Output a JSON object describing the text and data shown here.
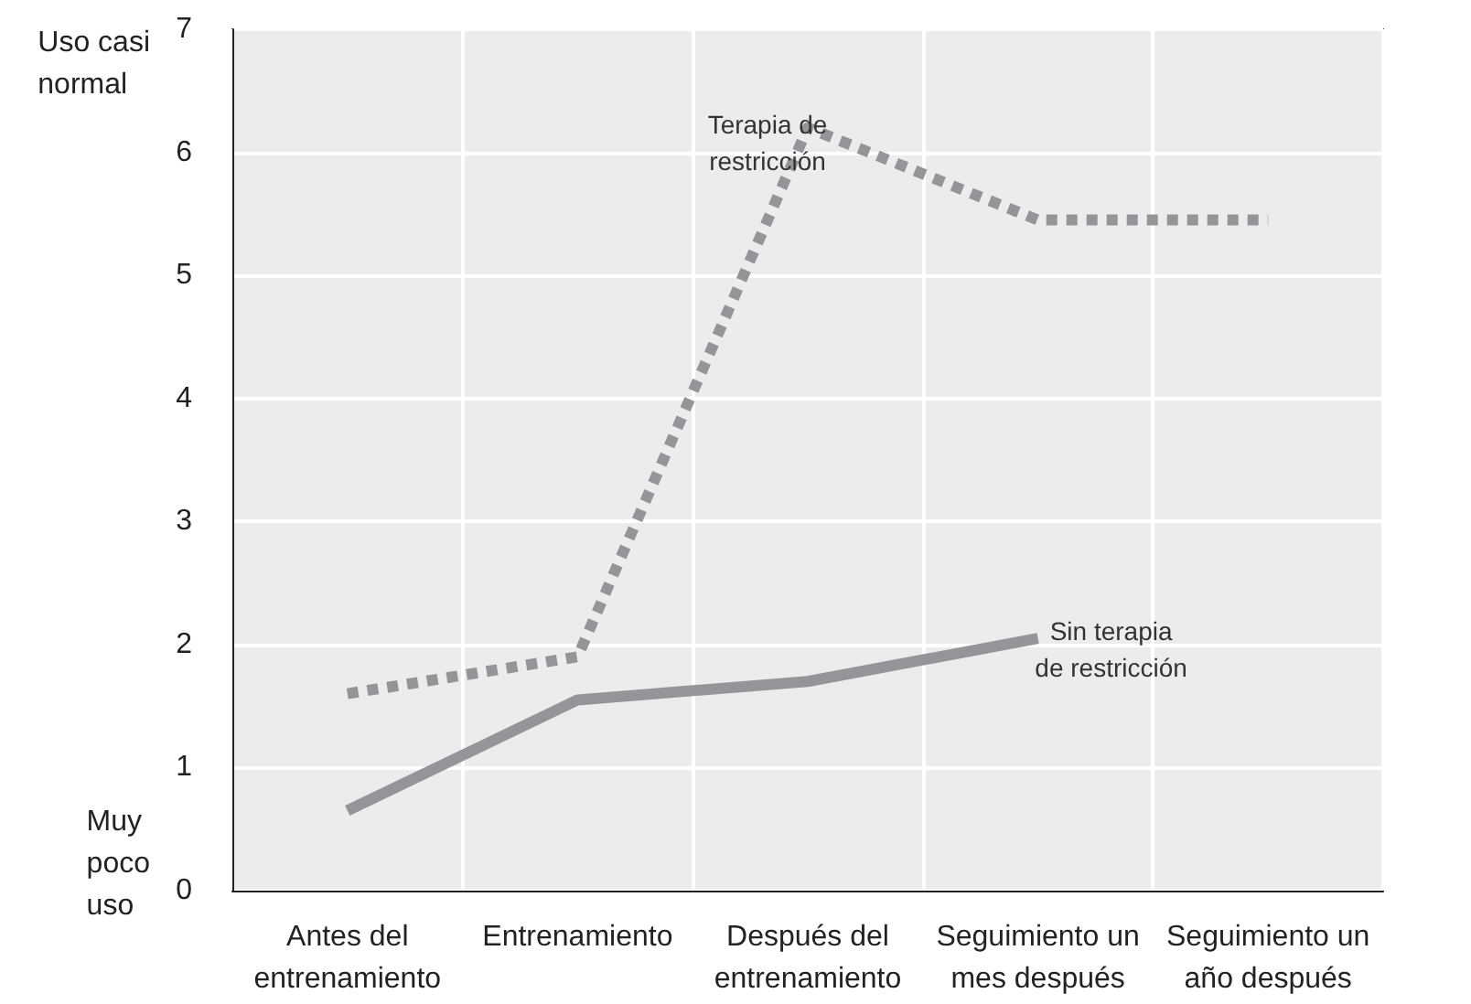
{
  "chart_data": {
    "type": "line",
    "categories": [
      "Antes del\nentrenamiento",
      "Entrenamiento",
      "Después del\nentrenamiento",
      "Seguimiento un\nmes después",
      "Seguimiento un\naño después"
    ],
    "series": [
      {
        "name": "Terapia de\nrestricción",
        "color": "#939598",
        "line_style": "dotted",
        "values": [
          1.6,
          1.9,
          6.2,
          5.45,
          5.45
        ]
      },
      {
        "name": "Sin terapia\nde restricción",
        "color": "#939598",
        "line_style": "solid",
        "values": [
          0.65,
          1.55,
          1.7,
          2.05,
          null
        ]
      }
    ],
    "annotations": [
      "Uso casi\nnormal",
      "Muy\npoco\nuso"
    ],
    "ylim": [
      0,
      7
    ],
    "yticks": [
      0,
      1,
      2,
      3,
      4,
      5,
      6,
      7
    ],
    "grid": true,
    "marker": "none"
  }
}
